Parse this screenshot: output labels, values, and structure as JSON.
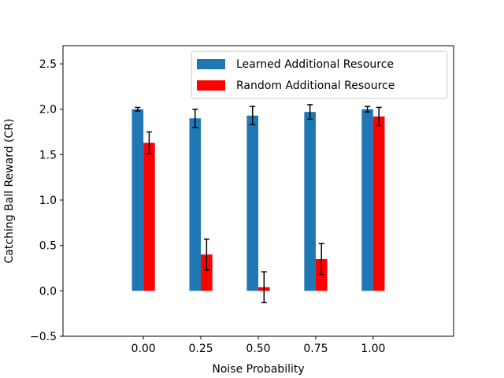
{
  "chart_data": {
    "type": "bar",
    "title": "",
    "xlabel": "Noise Probability",
    "ylabel": "Catching Ball Reward (CR)",
    "ylim": [
      -0.5,
      2.7
    ],
    "xlim": [
      -0.35,
      1.35
    ],
    "categories": [
      "0.00",
      "0.25",
      "0.50",
      "0.75",
      "1.00"
    ],
    "x": [
      0.0,
      0.25,
      0.5,
      0.75,
      1.0
    ],
    "yticks": [
      -0.5,
      0.0,
      0.5,
      1.0,
      1.5,
      2.0,
      2.5
    ],
    "ytick_labels": [
      "−0.5",
      "0.0",
      "0.5",
      "1.0",
      "1.5",
      "2.0",
      "2.5"
    ],
    "bar_width": 0.05,
    "grid": false,
    "legend_position": "top-right",
    "series": [
      {
        "name": "Learned Additional Resource",
        "color": "#1f77b4",
        "values": [
          2.0,
          1.9,
          1.93,
          1.97,
          2.0
        ],
        "errors": [
          0.02,
          0.1,
          0.1,
          0.08,
          0.03
        ]
      },
      {
        "name": "Random Additional Resource",
        "color": "#ff0000",
        "values": [
          1.63,
          0.4,
          0.04,
          0.35,
          1.92
        ],
        "errors": [
          0.12,
          0.17,
          0.17,
          0.17,
          0.1
        ]
      }
    ]
  }
}
